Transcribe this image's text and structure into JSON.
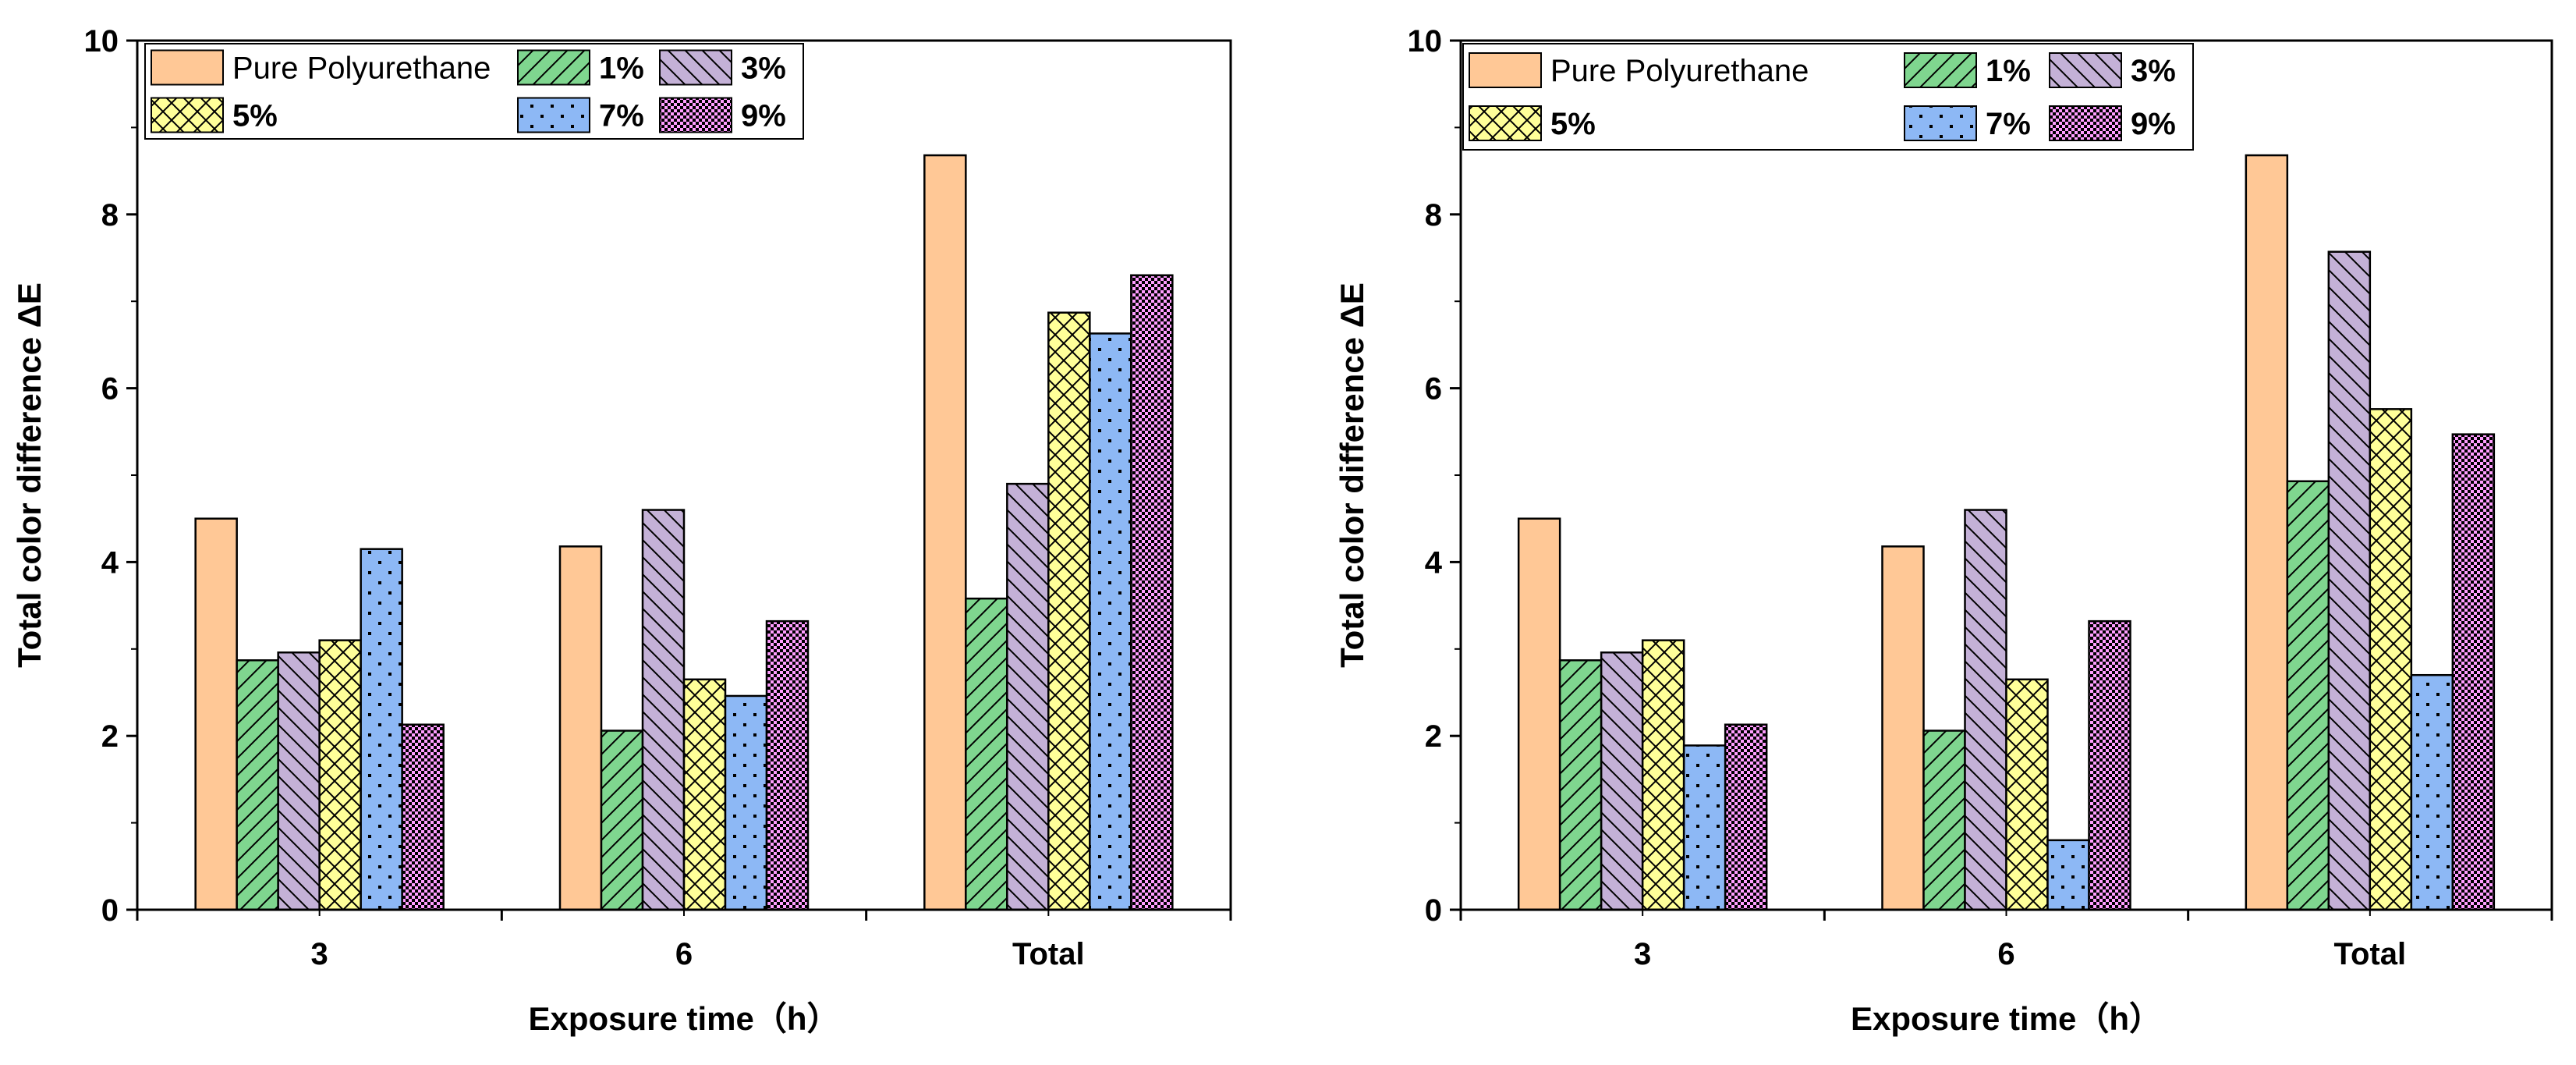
{
  "chart_data": [
    {
      "type": "bar",
      "title": "",
      "xlabel": "Exposure time（h）",
      "ylabel": "Total color difference ΔE",
      "ylim": [
        0,
        10
      ],
      "yticks": [
        0,
        2,
        4,
        6,
        8,
        10
      ],
      "categories": [
        "3",
        "6",
        "Total"
      ],
      "legend_position": "top-left",
      "series": [
        {
          "name": "Pure Polyurethane",
          "color": "#FFC896",
          "pattern": "solid",
          "values": [
            4.5,
            4.18,
            8.68
          ]
        },
        {
          "name": "1%",
          "color": "#7FD68F",
          "pattern": "diag-up",
          "values": [
            2.87,
            2.06,
            3.58
          ]
        },
        {
          "name": "3%",
          "color": "#C4B1D7",
          "pattern": "diag-down",
          "values": [
            2.96,
            4.6,
            4.9
          ]
        },
        {
          "name": "5%",
          "color": "#FFFF99",
          "pattern": "crosshatch",
          "values": [
            3.1,
            2.65,
            6.87
          ]
        },
        {
          "name": "7%",
          "color": "#8DB8F5",
          "pattern": "dots",
          "values": [
            4.15,
            2.46,
            6.63
          ]
        },
        {
          "name": "9%",
          "color": "#FF9DFF",
          "pattern": "checker",
          "values": [
            2.13,
            3.32,
            7.3
          ]
        }
      ]
    },
    {
      "type": "bar",
      "title": "",
      "xlabel": "Exposure time（h）",
      "ylabel": "Total color difference ΔE",
      "ylim": [
        0,
        10
      ],
      "yticks": [
        0,
        2,
        4,
        6,
        8,
        10
      ],
      "categories": [
        "3",
        "6",
        "Total"
      ],
      "legend_position": "top-left",
      "series": [
        {
          "name": "Pure Polyurethane",
          "color": "#FFC896",
          "pattern": "solid",
          "values": [
            4.5,
            4.18,
            8.68
          ]
        },
        {
          "name": "1%",
          "color": "#7FD68F",
          "pattern": "diag-up",
          "values": [
            2.87,
            2.06,
            4.93
          ]
        },
        {
          "name": "3%",
          "color": "#C4B1D7",
          "pattern": "diag-down",
          "values": [
            2.96,
            4.6,
            7.57
          ]
        },
        {
          "name": "5%",
          "color": "#FFFF99",
          "pattern": "crosshatch",
          "values": [
            3.1,
            2.65,
            5.76
          ]
        },
        {
          "name": "7%",
          "color": "#8DB8F5",
          "pattern": "dots",
          "values": [
            1.89,
            0.8,
            2.7
          ]
        },
        {
          "name": "9%",
          "color": "#FF9DFF",
          "pattern": "checker",
          "values": [
            2.13,
            3.32,
            5.47
          ]
        }
      ]
    }
  ]
}
